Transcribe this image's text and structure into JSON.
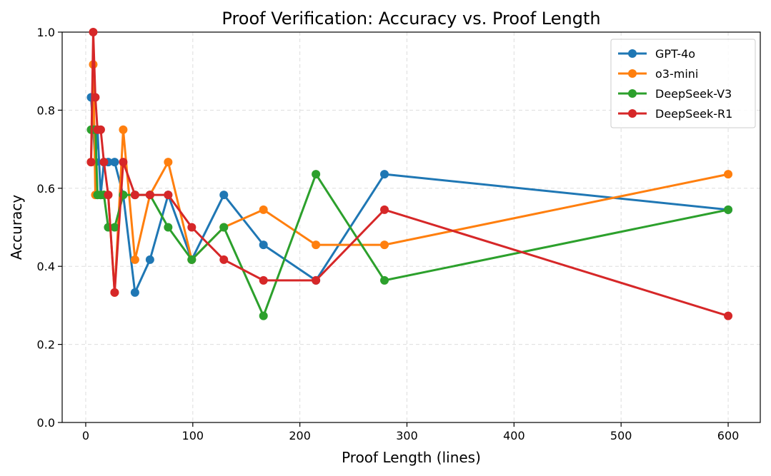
{
  "chart_data": {
    "type": "line",
    "title": "Proof Verification: Accuracy vs. Proof Length",
    "xlabel": "Proof Length (lines)",
    "ylabel": "Accuracy",
    "xlim": [
      -22,
      630
    ],
    "ylim": [
      0.0,
      1.0
    ],
    "xticks": [
      0,
      100,
      200,
      300,
      400,
      500,
      600
    ],
    "yticks": [
      0.0,
      0.2,
      0.4,
      0.6,
      0.8,
      1.0
    ],
    "xtick_labels": [
      "0",
      "100",
      "200",
      "300",
      "400",
      "500",
      "600"
    ],
    "ytick_labels": [
      "0.0",
      "0.2",
      "0.4",
      "0.6",
      "0.8",
      "1.0"
    ],
    "grid": true,
    "legend_position": "top-right",
    "series": [
      {
        "name": "GPT-4o",
        "color": "#1f77b4",
        "x": [
          5,
          7,
          9,
          11,
          14,
          17,
          21,
          27,
          35,
          46,
          60,
          77,
          99,
          129,
          166,
          215,
          279,
          600
        ],
        "y": [
          0.833,
          0.75,
          0.667,
          0.75,
          0.583,
          0.667,
          0.667,
          0.667,
          0.583,
          0.333,
          0.417,
          0.583,
          0.417,
          0.583,
          0.455,
          0.364,
          0.636,
          0.545
        ]
      },
      {
        "name": "o3-mini",
        "color": "#ff7f0e",
        "x": [
          5,
          7,
          9,
          11,
          14,
          17,
          21,
          27,
          35,
          46,
          60,
          77,
          99,
          129,
          166,
          215,
          279,
          600
        ],
        "y": [
          0.667,
          0.917,
          0.583,
          0.583,
          0.583,
          0.583,
          0.583,
          0.333,
          0.75,
          0.417,
          0.583,
          0.667,
          0.417,
          0.5,
          0.545,
          0.455,
          0.455,
          0.636
        ]
      },
      {
        "name": "DeepSeek-V3",
        "color": "#2ca02c",
        "x": [
          5,
          7,
          9,
          11,
          14,
          17,
          21,
          27,
          35,
          46,
          60,
          77,
          99,
          129,
          166,
          215,
          279,
          600
        ],
        "y": [
          0.75,
          0.75,
          0.75,
          0.583,
          0.583,
          0.583,
          0.5,
          0.5,
          0.583,
          0.583,
          0.583,
          0.5,
          0.417,
          0.5,
          0.273,
          0.636,
          0.364,
          0.545
        ]
      },
      {
        "name": "DeepSeek-R1",
        "color": "#d62728",
        "x": [
          5,
          7,
          9,
          11,
          14,
          17,
          21,
          27,
          35,
          46,
          60,
          77,
          99,
          129,
          166,
          215,
          279,
          600
        ],
        "y": [
          0.667,
          1.0,
          0.833,
          0.75,
          0.75,
          0.667,
          0.583,
          0.333,
          0.667,
          0.583,
          0.583,
          0.583,
          0.5,
          0.417,
          0.364,
          0.364,
          0.545,
          0.273
        ]
      }
    ]
  }
}
